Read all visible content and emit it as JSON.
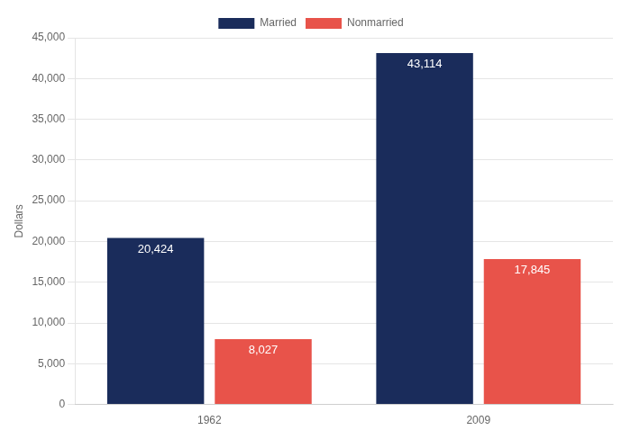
{
  "chart_data": {
    "type": "bar",
    "categories": [
      "1962",
      "2009"
    ],
    "series": [
      {
        "name": "Married",
        "color": "#1a2c5b",
        "values": [
          20424,
          43114
        ],
        "value_labels": [
          "20,424",
          "43,114"
        ]
      },
      {
        "name": "Nonmarried",
        "color": "#e8534a",
        "values": [
          8027,
          17845
        ],
        "value_labels": [
          "8,027",
          "17,845"
        ]
      }
    ],
    "ylabel": "Dollars",
    "ylim": [
      0,
      45000
    ],
    "yticks": [
      0,
      {
        "value": 5000,
        "label": "5,000"
      },
      {
        "value": 10000,
        "label": "10,000"
      },
      {
        "value": 15000,
        "label": "15,000"
      },
      {
        "value": 20000,
        "label": "20,000"
      },
      {
        "value": 25000,
        "label": "25,000"
      },
      {
        "value": 30000,
        "label": "30,000"
      },
      {
        "value": 35000,
        "label": "35,000"
      },
      {
        "value": 40000,
        "label": "40,000"
      },
      {
        "value": 45000,
        "label": "45,000"
      }
    ],
    "grid": true,
    "legend": "top",
    "data_labels": true
  }
}
